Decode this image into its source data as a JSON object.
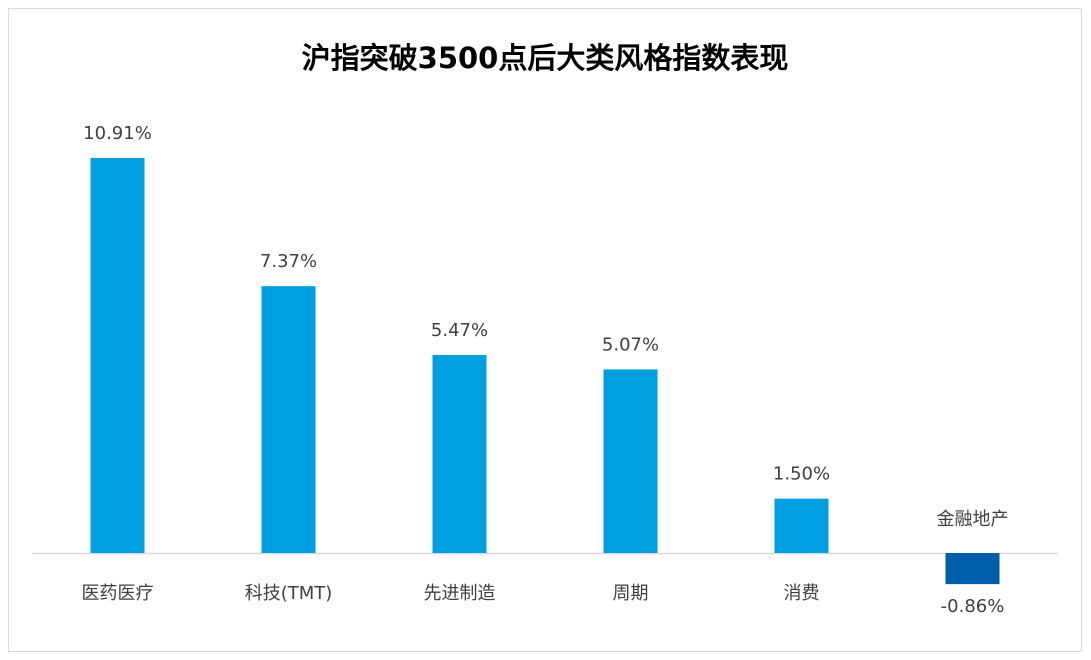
{
  "chart_data": {
    "type": "bar",
    "title": "沪指突破3500点后大类风格指数表现",
    "categories": [
      "医药医疗",
      "科技(TMT)",
      "先进制造",
      "周期",
      "消费",
      "金融地产"
    ],
    "values": [
      10.91,
      7.37,
      5.47,
      5.07,
      1.5,
      -0.86
    ],
    "value_labels": [
      "10.91%",
      "7.37%",
      "5.47%",
      "5.07%",
      "1.50%",
      "-0.86%"
    ],
    "colors": [
      "#009fe0",
      "#009fe0",
      "#009fe0",
      "#009fe0",
      "#009fe0",
      "#005ea8"
    ]
  }
}
